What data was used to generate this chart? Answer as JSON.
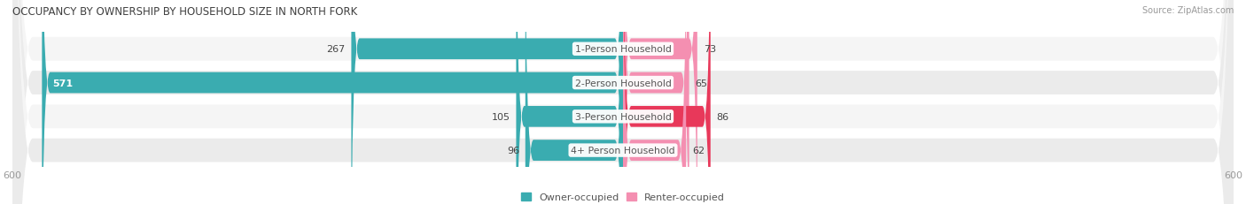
{
  "title": "OCCUPANCY BY OWNERSHIP BY HOUSEHOLD SIZE IN NORTH FORK",
  "source": "Source: ZipAtlas.com",
  "categories": [
    "1-Person Household",
    "2-Person Household",
    "3-Person Household",
    "4+ Person Household"
  ],
  "owner_values": [
    267,
    571,
    105,
    96
  ],
  "renter_values": [
    73,
    65,
    86,
    62
  ],
  "max_val": 600,
  "owner_color": "#3aacb0",
  "renter_colors": [
    "#f48fb1",
    "#f48fb1",
    "#e8385a",
    "#f48fb1"
  ],
  "row_bg_even": "#f5f5f5",
  "row_bg_odd": "#ebebeb",
  "label_color_dark": "#444444",
  "label_color_white": "#ffffff",
  "title_color": "#404040",
  "axis_label_color": "#999999",
  "legend_owner_color": "#3aacb0",
  "legend_renter_color": "#f48fb1",
  "center_label_color": "#555555"
}
